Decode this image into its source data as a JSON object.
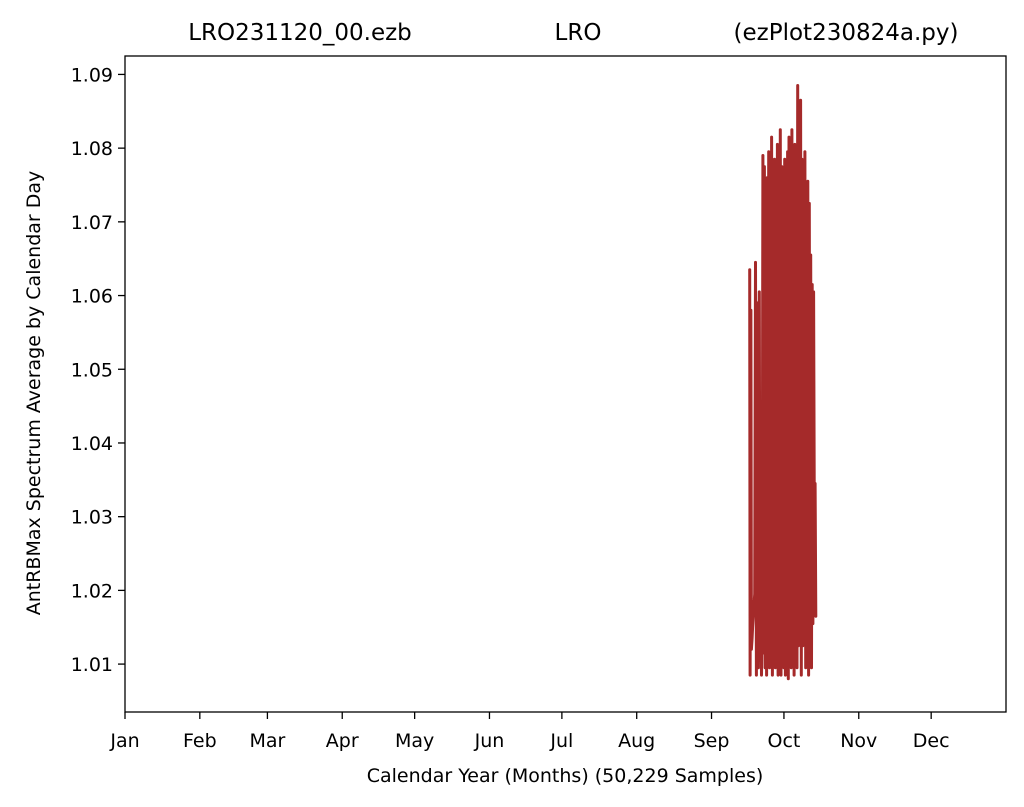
{
  "header": {
    "left": "LRO231120_00.ezb",
    "center": "LRO",
    "right": "(ezPlot230824a.py)"
  },
  "chart_data": {
    "type": "line",
    "xlabel": "Calendar Year (Months) (50,229 Samples)",
    "ylabel": "AntRBMax Spectrum Average by Calendar Day",
    "xlim": [
      0,
      365
    ],
    "ylim": [
      1.0035,
      1.0925
    ],
    "x_ticks": [
      {
        "label": "Jan",
        "value": 0
      },
      {
        "label": "Feb",
        "value": 31
      },
      {
        "label": "Mar",
        "value": 59
      },
      {
        "label": "Apr",
        "value": 90
      },
      {
        "label": "May",
        "value": 120
      },
      {
        "label": "Jun",
        "value": 151
      },
      {
        "label": "Jul",
        "value": 181
      },
      {
        "label": "Aug",
        "value": 212
      },
      {
        "label": "Sep",
        "value": 243
      },
      {
        "label": "Oct",
        "value": 273
      },
      {
        "label": "Nov",
        "value": 304
      },
      {
        "label": "Dec",
        "value": 334
      }
    ],
    "y_ticks": [
      {
        "label": "1.01",
        "value": 1.01
      },
      {
        "label": "1.02",
        "value": 1.02
      },
      {
        "label": "1.03",
        "value": 1.03
      },
      {
        "label": "1.04",
        "value": 1.04
      },
      {
        "label": "1.05",
        "value": 1.05
      },
      {
        "label": "1.06",
        "value": 1.06
      },
      {
        "label": "1.07",
        "value": 1.07
      },
      {
        "label": "1.08",
        "value": 1.08
      },
      {
        "label": "1.09",
        "value": 1.09
      }
    ],
    "grid": false,
    "series": [
      {
        "color": "#a52a2a",
        "x": [
          258.8,
          259.0,
          259.3,
          259.5,
          259.8,
          260.0,
          260.3,
          260.6,
          260.9,
          261.2,
          261.6,
          262.0,
          262.4,
          262.8,
          263.1,
          263.4,
          263.7,
          264.0,
          264.3,
          264.6,
          264.9,
          265.2,
          265.5,
          265.8,
          266.1,
          266.4,
          266.7,
          267.0,
          267.3,
          267.6,
          267.9,
          268.2,
          268.5,
          268.8,
          269.1,
          269.4,
          269.7,
          270.0,
          270.3,
          270.6,
          270.9,
          271.2,
          271.5,
          271.8,
          272.1,
          272.4,
          272.7,
          273.0,
          273.3,
          273.6,
          273.9,
          274.2,
          274.5,
          274.8,
          275.1,
          275.4,
          275.7,
          276.0,
          276.3,
          276.6,
          276.9,
          277.2,
          277.5,
          277.8,
          278.1,
          278.4,
          278.7,
          279.0,
          279.3,
          279.6,
          279.9,
          280.2,
          280.5,
          280.8,
          281.1,
          281.4,
          281.7,
          282.0,
          282.3,
          282.6,
          282.9,
          283.2,
          283.5,
          283.8,
          284.1,
          284.4,
          284.7,
          285.0,
          285.3,
          285.6,
          285.9,
          286.2
        ],
        "y": [
          1.0635,
          1.0085,
          1.058,
          1.012,
          1.0135,
          1.015,
          1.0165,
          1.018,
          1.0195,
          1.0645,
          1.0085,
          1.059,
          1.0095,
          1.0605,
          1.0105,
          1.0275,
          1.0085,
          1.019,
          1.079,
          1.0115,
          1.0775,
          1.0095,
          1.071,
          1.0085,
          1.076,
          1.0105,
          1.0795,
          1.0095,
          1.0745,
          1.0115,
          1.0815,
          1.0085,
          1.0725,
          1.0125,
          1.0785,
          1.0095,
          1.0755,
          1.0105,
          1.0805,
          1.0085,
          1.0765,
          1.0095,
          1.0825,
          1.0085,
          1.0775,
          1.0115,
          1.0705,
          1.0095,
          1.0785,
          1.0085,
          1.0765,
          1.0105,
          1.0795,
          1.008,
          1.0815,
          1.0115,
          1.0745,
          1.0095,
          1.0825,
          1.0165,
          1.0765,
          1.0085,
          1.0805,
          1.0175,
          1.0775,
          1.0095,
          1.0885,
          1.0125,
          1.0815,
          1.0155,
          1.0865,
          1.0085,
          1.0785,
          1.0125,
          1.0725,
          1.0185,
          1.0795,
          1.0095,
          1.0705,
          1.0165,
          1.0755,
          1.0085,
          1.0725,
          1.0145,
          1.0655,
          1.0095,
          1.0615,
          1.0155,
          1.0605,
          1.0265,
          1.0345,
          1.0165
        ]
      }
    ]
  }
}
